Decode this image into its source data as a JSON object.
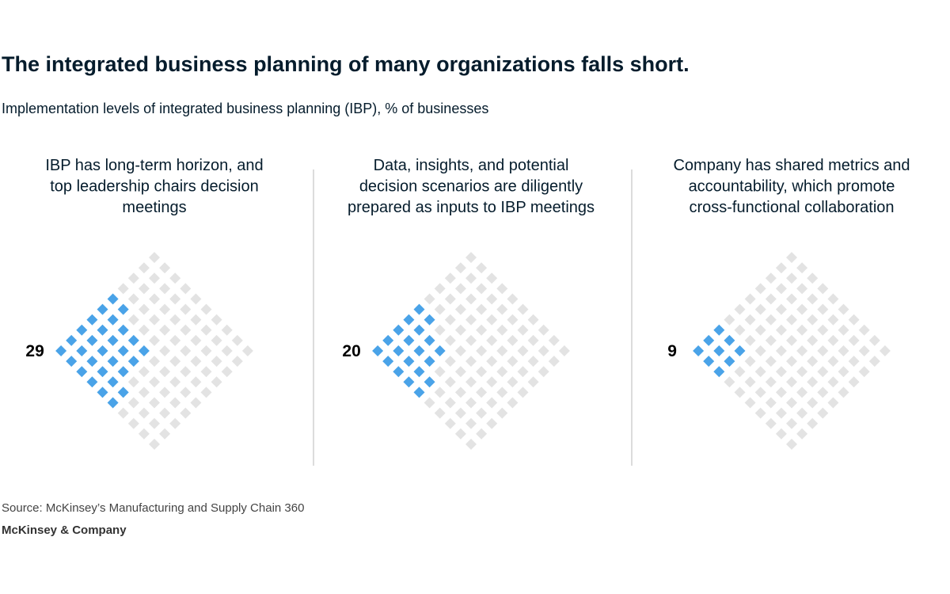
{
  "header": {
    "title": "The integrated business planning of many organizations falls short.",
    "subtitle": "Implementation levels of integrated business planning (IBP), % of businesses"
  },
  "chart_data": {
    "type": "waffle",
    "unit": "% of businesses",
    "total_cells": 100,
    "colors": {
      "filled": "#4aa3e8",
      "empty": "#e3e3e3",
      "divider": "#d0d0d0"
    },
    "panels": [
      {
        "label": "IBP has long-term horizon, and top leadership chairs decision meetings",
        "label_lines": [
          "IBP has long-term horizon, and",
          "top leadership chairs decision",
          "meetings"
        ],
        "value": 29
      },
      {
        "label": "Data, insights, and potential decision scenarios are diligently prepared as inputs to IBP meetings",
        "label_lines": [
          "Data, insights, and potential",
          "decision scenarios are diligently",
          "prepared as inputs to IBP meetings"
        ],
        "value": 20
      },
      {
        "label": "Company has shared metrics and accountability, which promote cross-functional collaboration",
        "label_lines": [
          "Company has shared metrics and",
          "accountability, which promote",
          "cross-functional collaboration"
        ],
        "value": 9
      }
    ]
  },
  "footer": {
    "source": "Source: McKinsey’s Manufacturing and Supply Chain 360",
    "brand": "McKinsey & Company"
  }
}
